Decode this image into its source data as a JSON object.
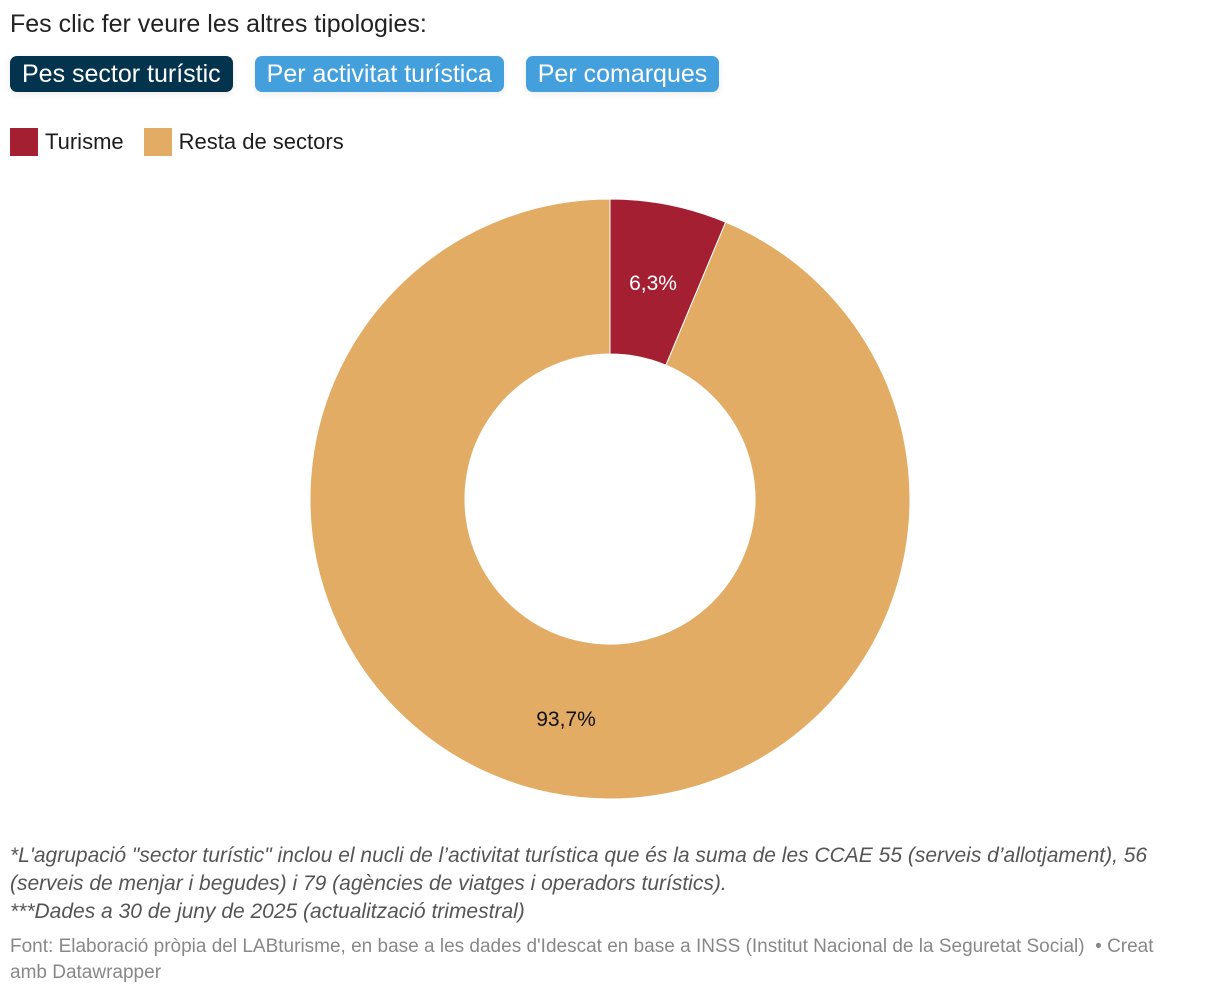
{
  "intro": "Fes clic fer veure les altres tipologies:",
  "buttons": [
    {
      "label": "Pes sector turístic",
      "active": true
    },
    {
      "label": "Per activitat turística",
      "active": false
    },
    {
      "label": "Per comarques",
      "active": false
    }
  ],
  "chart_data": {
    "type": "pie",
    "donut": true,
    "categories": [
      "Turisme",
      "Resta de sectors"
    ],
    "values": [
      6.3,
      93.7
    ],
    "labels": [
      "6,3%",
      "93,7%"
    ],
    "colors": [
      "#a51f33",
      "#e2ac64"
    ],
    "legend": [
      "Turisme",
      "Resta de sectors"
    ],
    "legend_position": "top-left"
  },
  "notes": [
    "*L'agrupació \"sector turístic\" inclou el nucli de l’activitat turística que és la suma de les CCAE 55 (serveis d’allotjament), 56 (serveis de menjar i begudes) i 79 (agències de viatges i operadors turístics).",
    "***Dades a 30 de juny de 2025 (actualització trimestral)"
  ],
  "source": "Font: Elaboració pròpia del LABturisme, en base a les dades d'Idescat en base a INSS (Institut Nacional de la Seguretat Social)",
  "credit": "• Creat amb Datawrapper"
}
